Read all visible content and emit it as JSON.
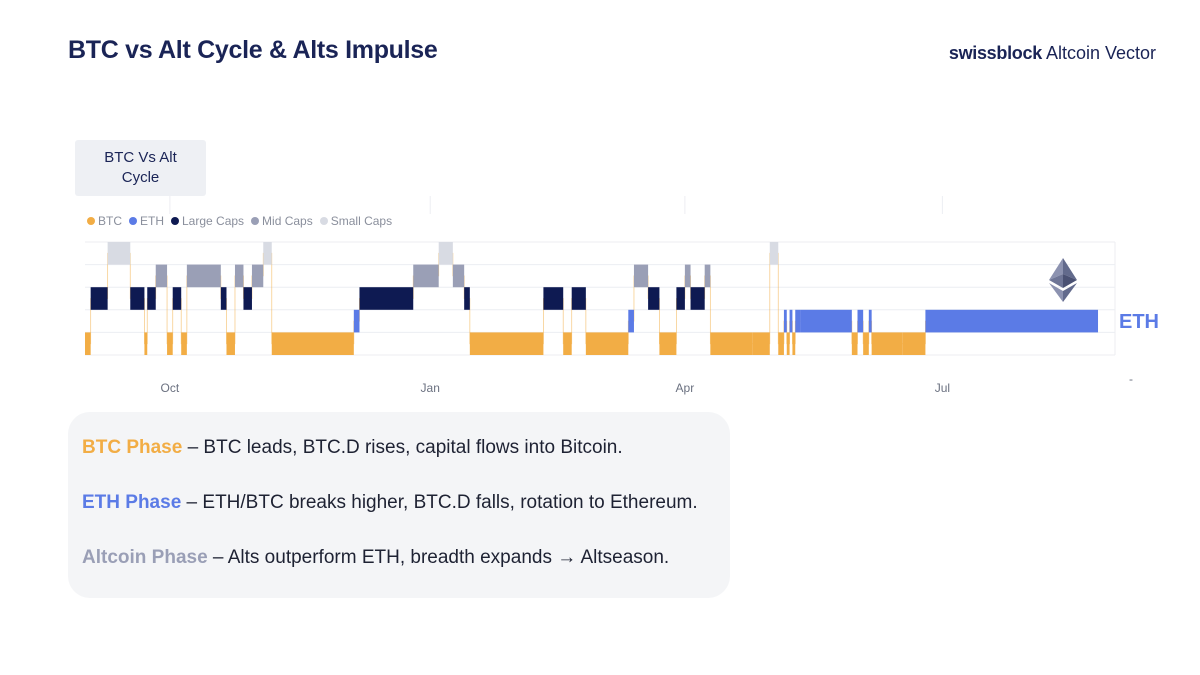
{
  "header": {
    "title": "BTC vs Alt Cycle & Alts Impulse",
    "brand_strong": "swissblock",
    "brand_light": "Altcoin Vector"
  },
  "tab": {
    "label": "BTC Vs Alt Cycle"
  },
  "colors": {
    "btc": "#f2ad45",
    "eth": "#5b7be6",
    "large_caps": "#0e1a52",
    "mid_caps": "#9a9fb6",
    "small_caps": "#d8dbe3"
  },
  "chart_data": {
    "type": "step-band",
    "legend_placement": "top-left",
    "legend": [
      {
        "key": "btc",
        "label": "BTC"
      },
      {
        "key": "eth",
        "label": "ETH"
      },
      {
        "key": "large",
        "label": "Large Caps"
      },
      {
        "key": "mid",
        "label": "Mid Caps"
      },
      {
        "key": "small",
        "label": "Small Caps"
      }
    ],
    "levels": [
      "btc",
      "eth",
      "large",
      "mid",
      "small"
    ],
    "x_range": [
      "2024-09-01",
      "2025-08-31"
    ],
    "x_ticks": [
      {
        "date": "2024-10-01",
        "label": "Oct"
      },
      {
        "date": "2025-01-01",
        "label": "Jan"
      },
      {
        "date": "2025-04-01",
        "label": "Apr"
      },
      {
        "date": "2025-07-01",
        "label": "Jul"
      }
    ],
    "end_label": "ETH",
    "grid": true,
    "segments": [
      {
        "start": "2024-09-01",
        "end": "2024-09-03",
        "regime": "btc"
      },
      {
        "start": "2024-09-03",
        "end": "2024-09-09",
        "regime": "large"
      },
      {
        "start": "2024-09-09",
        "end": "2024-09-17",
        "regime": "small"
      },
      {
        "start": "2024-09-17",
        "end": "2024-09-22",
        "regime": "large"
      },
      {
        "start": "2024-09-22",
        "end": "2024-09-23",
        "regime": "btc"
      },
      {
        "start": "2024-09-23",
        "end": "2024-09-26",
        "regime": "large"
      },
      {
        "start": "2024-09-26",
        "end": "2024-09-30",
        "regime": "mid"
      },
      {
        "start": "2024-09-30",
        "end": "2024-10-02",
        "regime": "btc"
      },
      {
        "start": "2024-10-02",
        "end": "2024-10-05",
        "regime": "large"
      },
      {
        "start": "2024-10-05",
        "end": "2024-10-07",
        "regime": "btc"
      },
      {
        "start": "2024-10-07",
        "end": "2024-10-19",
        "regime": "mid"
      },
      {
        "start": "2024-10-19",
        "end": "2024-10-21",
        "regime": "large"
      },
      {
        "start": "2024-10-21",
        "end": "2024-10-24",
        "regime": "btc"
      },
      {
        "start": "2024-10-24",
        "end": "2024-10-27",
        "regime": "mid"
      },
      {
        "start": "2024-10-27",
        "end": "2024-10-30",
        "regime": "large"
      },
      {
        "start": "2024-10-30",
        "end": "2024-11-03",
        "regime": "mid"
      },
      {
        "start": "2024-11-03",
        "end": "2024-11-06",
        "regime": "small"
      },
      {
        "start": "2024-11-06",
        "end": "2024-12-05",
        "regime": "btc"
      },
      {
        "start": "2024-12-05",
        "end": "2024-12-07",
        "regime": "eth"
      },
      {
        "start": "2024-12-07",
        "end": "2024-12-26",
        "regime": "large"
      },
      {
        "start": "2024-12-26",
        "end": "2025-01-04",
        "regime": "mid"
      },
      {
        "start": "2025-01-04",
        "end": "2025-01-09",
        "regime": "small"
      },
      {
        "start": "2025-01-09",
        "end": "2025-01-13",
        "regime": "mid"
      },
      {
        "start": "2025-01-13",
        "end": "2025-01-15",
        "regime": "large"
      },
      {
        "start": "2025-01-15",
        "end": "2025-02-10",
        "regime": "btc"
      },
      {
        "start": "2025-02-10",
        "end": "2025-02-17",
        "regime": "large"
      },
      {
        "start": "2025-02-17",
        "end": "2025-02-20",
        "regime": "btc"
      },
      {
        "start": "2025-02-20",
        "end": "2025-02-25",
        "regime": "large"
      },
      {
        "start": "2025-02-25",
        "end": "2025-03-12",
        "regime": "btc"
      },
      {
        "start": "2025-03-12",
        "end": "2025-03-14",
        "regime": "eth"
      },
      {
        "start": "2025-03-14",
        "end": "2025-03-19",
        "regime": "mid"
      },
      {
        "start": "2025-03-19",
        "end": "2025-03-23",
        "regime": "large"
      },
      {
        "start": "2025-03-23",
        "end": "2025-03-29",
        "regime": "btc"
      },
      {
        "start": "2025-03-29",
        "end": "2025-04-01",
        "regime": "large"
      },
      {
        "start": "2025-04-01",
        "end": "2025-04-03",
        "regime": "mid"
      },
      {
        "start": "2025-04-03",
        "end": "2025-04-08",
        "regime": "large"
      },
      {
        "start": "2025-04-08",
        "end": "2025-04-10",
        "regime": "mid"
      },
      {
        "start": "2025-04-10",
        "end": "2025-04-25",
        "regime": "btc"
      },
      {
        "start": "2025-04-25",
        "end": "2025-05-01",
        "regime": "btc"
      },
      {
        "start": "2025-05-01",
        "end": "2025-05-04",
        "regime": "small"
      },
      {
        "start": "2025-05-04",
        "end": "2025-05-06",
        "regime": "btc"
      },
      {
        "start": "2025-05-06",
        "end": "2025-05-07",
        "regime": "eth"
      },
      {
        "start": "2025-05-07",
        "end": "2025-05-08",
        "regime": "btc"
      },
      {
        "start": "2025-05-08",
        "end": "2025-05-09",
        "regime": "eth"
      },
      {
        "start": "2025-05-09",
        "end": "2025-05-10",
        "regime": "btc"
      },
      {
        "start": "2025-05-10",
        "end": "2025-05-12",
        "regime": "eth"
      },
      {
        "start": "2025-05-12",
        "end": "2025-05-30",
        "regime": "eth"
      },
      {
        "start": "2025-05-30",
        "end": "2025-06-01",
        "regime": "btc"
      },
      {
        "start": "2025-06-01",
        "end": "2025-06-03",
        "regime": "eth"
      },
      {
        "start": "2025-06-03",
        "end": "2025-06-05",
        "regime": "btc"
      },
      {
        "start": "2025-06-05",
        "end": "2025-06-06",
        "regime": "eth"
      },
      {
        "start": "2025-06-06",
        "end": "2025-06-17",
        "regime": "btc"
      },
      {
        "start": "2025-06-17",
        "end": "2025-06-25",
        "regime": "btc"
      },
      {
        "start": "2025-06-25",
        "end": "2025-08-25",
        "regime": "eth"
      }
    ]
  },
  "phases": [
    {
      "name": "BTC Phase",
      "color": "#f2ad45",
      "text": " – BTC leads, BTC.D rises, capital flows into Bitcoin."
    },
    {
      "name": "ETH Phase",
      "color": "#5b7be6",
      "text": " – ETH/BTC breaks higher, BTC.D falls, rotation to Ethereum."
    },
    {
      "name": "Altcoin Phase",
      "color": "#9a9fb6",
      "text": " – Alts outperform ETH, breadth expands → Altseason."
    }
  ]
}
